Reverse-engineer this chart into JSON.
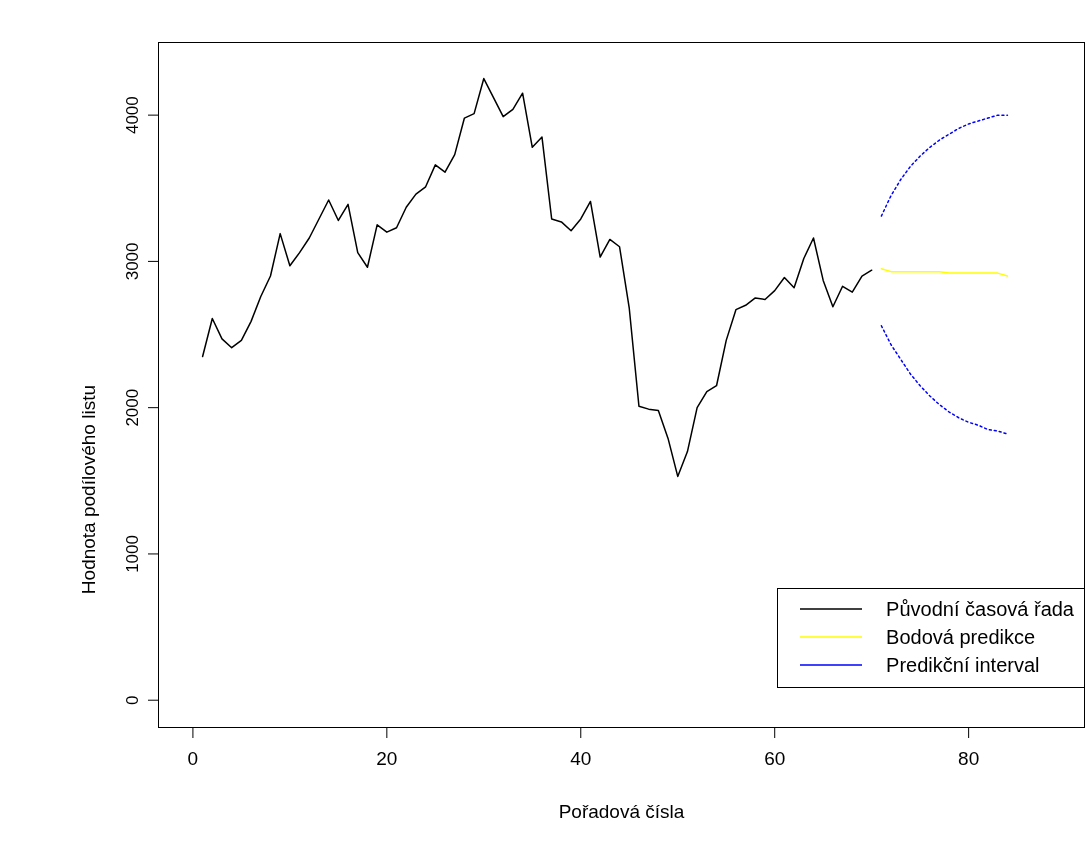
{
  "chart_data": {
    "type": "line",
    "xlabel": "Pořadová čísla",
    "ylabel": "Hodnota podílového listu",
    "xlim": [
      -3.6,
      92
    ],
    "xticks": [
      0,
      20,
      40,
      60,
      80
    ],
    "ylim": [
      -190,
      4500
    ],
    "yticks": [
      0,
      1000,
      2000,
      3000,
      4000
    ],
    "legend": "bottom right",
    "grid": false,
    "series": [
      {
        "name": "Původní časová řada",
        "color": "#000000",
        "line_style": "solid",
        "x": [
          1,
          2,
          3,
          4,
          5,
          6,
          7,
          8,
          9,
          10,
          11,
          12,
          13,
          14,
          15,
          16,
          17,
          18,
          19,
          20,
          21,
          22,
          23,
          24,
          25,
          26,
          27,
          28,
          29,
          30,
          31,
          32,
          33,
          34,
          35,
          36,
          37,
          38,
          39,
          40,
          41,
          42,
          43,
          44,
          45,
          46,
          47,
          48,
          49,
          50,
          51,
          52,
          53,
          54,
          55,
          56,
          57,
          58,
          59,
          60,
          61,
          62,
          63,
          64,
          65,
          66,
          67,
          68,
          69,
          70
        ],
        "values": [
          2350,
          2610,
          2470,
          2410,
          2460,
          2590,
          2760,
          2900,
          3190,
          2970,
          3060,
          3160,
          3290,
          3420,
          3280,
          3390,
          3060,
          2960,
          3250,
          3200,
          3230,
          3370,
          3460,
          3510,
          3660,
          3610,
          3730,
          3980,
          4010,
          4250,
          4120,
          3990,
          4040,
          4150,
          3780,
          3850,
          3290,
          3270,
          3210,
          3290,
          3410,
          3030,
          3150,
          3100,
          2680,
          2010,
          1990,
          1980,
          1790,
          1530,
          1700,
          2000,
          2110,
          2150,
          2460,
          2670,
          2700,
          2750,
          2740,
          2800,
          2890,
          2820,
          3020,
          3160,
          2870,
          2690,
          2830,
          2790,
          2900,
          2940
        ]
      },
      {
        "name": "Bodová predikce",
        "color": "#ffff00",
        "line_style": "solid",
        "x": [
          71,
          72,
          73,
          74,
          75,
          76,
          77,
          78,
          79,
          80,
          81,
          82,
          83,
          84
        ],
        "values": [
          2950,
          2930,
          2930,
          2930,
          2930,
          2930,
          2930,
          2920,
          2920,
          2920,
          2920,
          2920,
          2920,
          2900
        ]
      },
      {
        "name": "Predikční interval",
        "color": "#0000ff",
        "line_style": "dotted",
        "x": [
          71,
          72,
          73,
          74,
          75,
          76,
          77,
          78,
          79,
          80,
          81,
          82,
          83,
          84
        ],
        "values": [
          3310,
          3450,
          3560,
          3650,
          3720,
          3780,
          3830,
          3870,
          3910,
          3940,
          3960,
          3980,
          4000,
          4000
        ]
      },
      {
        "color": "#0000ff",
        "line_style": "dotted",
        "x": [
          71,
          72,
          73,
          74,
          75,
          76,
          77,
          78,
          79,
          80,
          81,
          82,
          83,
          84
        ],
        "values": [
          2560,
          2430,
          2330,
          2230,
          2150,
          2080,
          2020,
          1970,
          1930,
          1900,
          1880,
          1850,
          1840,
          1820
        ]
      }
    ]
  }
}
